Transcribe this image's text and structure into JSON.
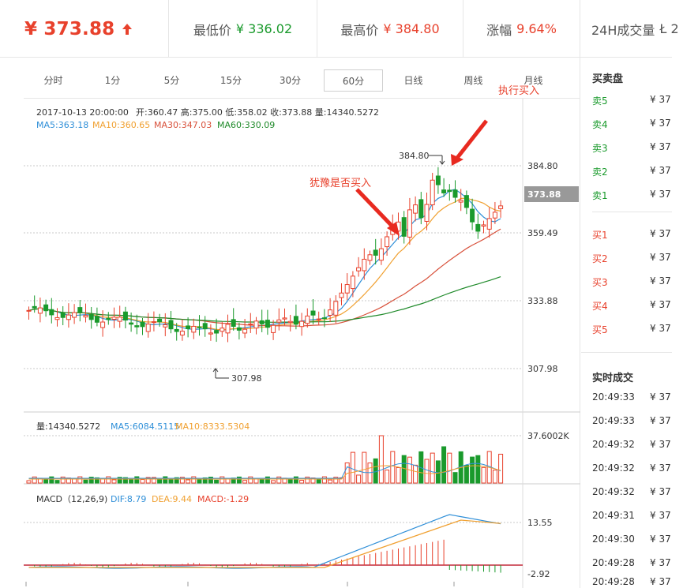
{
  "header": {
    "price": "¥ 373.88",
    "low_label": "最低价",
    "low_value": "¥ 336.02",
    "high_label": "最高价",
    "high_value": "¥ 384.80",
    "change_label": "涨幅",
    "change_value": "9.64%",
    "volume_label": "24H成交量",
    "volume_value": "Ł 2"
  },
  "tabs": [
    "分时",
    "1分",
    "5分",
    "15分",
    "30分",
    "60分",
    "日线",
    "周线",
    "月线"
  ],
  "active_tab": "60分",
  "annotations": {
    "execute_buy": "执行买入",
    "hesitate": "犹豫是否买入"
  },
  "kline_info": {
    "datetime": "2017-10-13 20:00:00",
    "ohlcv": "开:360.47  高:375.00  低:358.02  收:373.88  量:14340.5272",
    "ma5": "MA5:363.18",
    "ma10": "MA10:360.65",
    "ma30": "MA30:347.03",
    "ma60": "MA60:330.09"
  },
  "price_axis": [
    "384.80",
    "359.49",
    "333.88",
    "307.98"
  ],
  "current_price_tag": "373.88",
  "max_marker": "384.80",
  "min_marker": "307.98",
  "volume_info": {
    "vol": "量:14340.5272",
    "ma5": "MA5:6084.5115",
    "ma10": "MA10:8333.5304"
  },
  "volume_axis": "37.6002K",
  "macd_info": {
    "name": "MACD（12,26,9)",
    "dif": "DIF:8.79",
    "dea": "DEA:9.44",
    "macd": "MACD:-1.29"
  },
  "macd_axis": [
    "13.55",
    "-2.92"
  ],
  "orderbook": {
    "title": "买卖盘",
    "asks": [
      {
        "label": "卖5",
        "price": "¥ 37"
      },
      {
        "label": "卖4",
        "price": "¥ 37"
      },
      {
        "label": "卖3",
        "price": "¥ 37"
      },
      {
        "label": "卖2",
        "price": "¥ 37"
      },
      {
        "label": "卖1",
        "price": "¥ 37"
      }
    ],
    "bids": [
      {
        "label": "买1",
        "price": "¥ 37"
      },
      {
        "label": "买2",
        "price": "¥ 37"
      },
      {
        "label": "买3",
        "price": "¥ 37"
      },
      {
        "label": "买4",
        "price": "¥ 37"
      },
      {
        "label": "买5",
        "price": "¥ 37"
      }
    ]
  },
  "trades": {
    "title": "实时成交",
    "rows": [
      {
        "time": "20:49:33",
        "price": "¥ 37"
      },
      {
        "time": "20:49:33",
        "price": "¥ 37"
      },
      {
        "time": "20:49:32",
        "price": "¥ 37"
      },
      {
        "time": "20:49:32",
        "price": "¥ 37"
      },
      {
        "time": "20:49:32",
        "price": "¥ 37"
      },
      {
        "time": "20:49:31",
        "price": "¥ 37"
      },
      {
        "time": "20:49:30",
        "price": "¥ 37"
      },
      {
        "time": "20:49:28",
        "price": "¥ 37"
      },
      {
        "time": "20:49:28",
        "price": "¥ 37"
      }
    ]
  },
  "colors": {
    "up": "#e8412c",
    "down": "#1a9a2c",
    "ma5": "#2f8fd8",
    "ma10": "#f0a030",
    "ma30": "#d8503a",
    "ma60": "#1f8a2a"
  }
}
